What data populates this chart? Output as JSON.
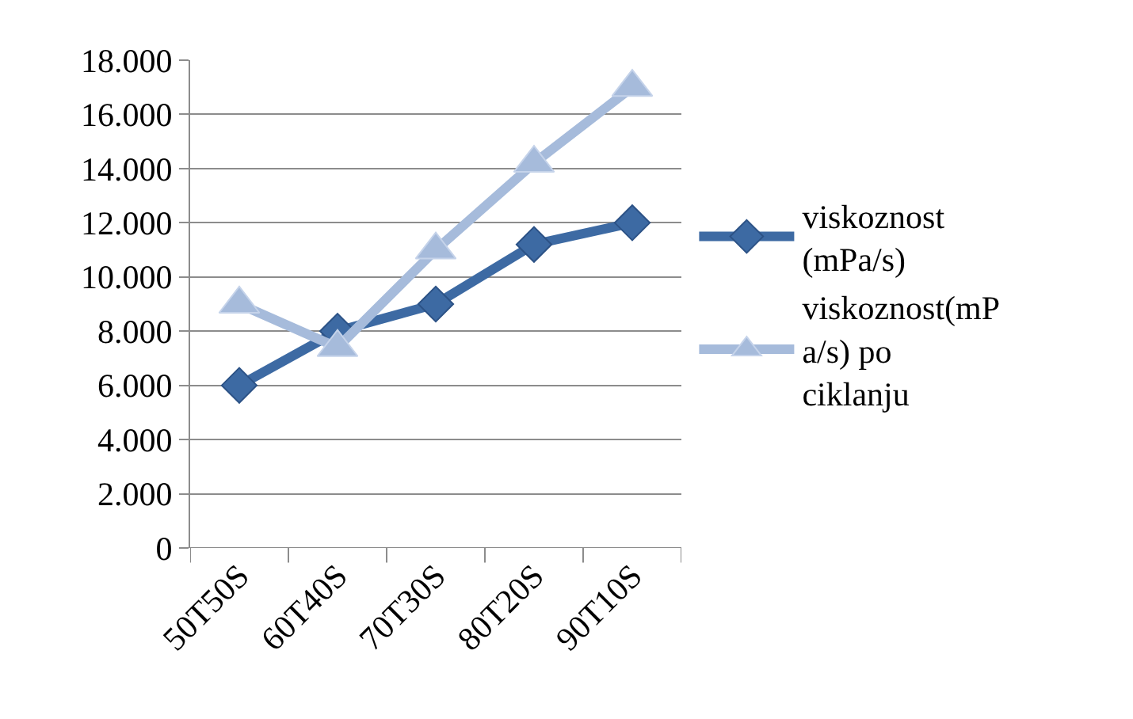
{
  "chart_data": {
    "type": "line",
    "categories": [
      "50T50S",
      "60T40S",
      "70T30S",
      "80T20S",
      "90T10S"
    ],
    "series": [
      {
        "name": "viskoznost (mPa/s)",
        "color": "#3d6aa3",
        "marker": "diamond",
        "values": [
          6000,
          8000,
          9000,
          11200,
          12000
        ]
      },
      {
        "name": "viskoznost(mPa/s) po ciklanju",
        "color": "#a6bbdb",
        "marker": "triangle",
        "values": [
          9000,
          7400,
          11000,
          14200,
          17000
        ]
      }
    ],
    "ylim": [
      0,
      18000
    ],
    "yticks": [
      {
        "value": 0,
        "label": "0"
      },
      {
        "value": 2000,
        "label": "2.000"
      },
      {
        "value": 4000,
        "label": "4.000"
      },
      {
        "value": 6000,
        "label": "6.000"
      },
      {
        "value": 8000,
        "label": "8.000"
      },
      {
        "value": 10000,
        "label": "10.000"
      },
      {
        "value": 12000,
        "label": "12.000"
      },
      {
        "value": 14000,
        "label": "14.000"
      },
      {
        "value": 16000,
        "label": "16.000"
      },
      {
        "value": 18000,
        "label": "18.000"
      }
    ],
    "grid": "y",
    "legend": "right",
    "line_style": "solid"
  }
}
